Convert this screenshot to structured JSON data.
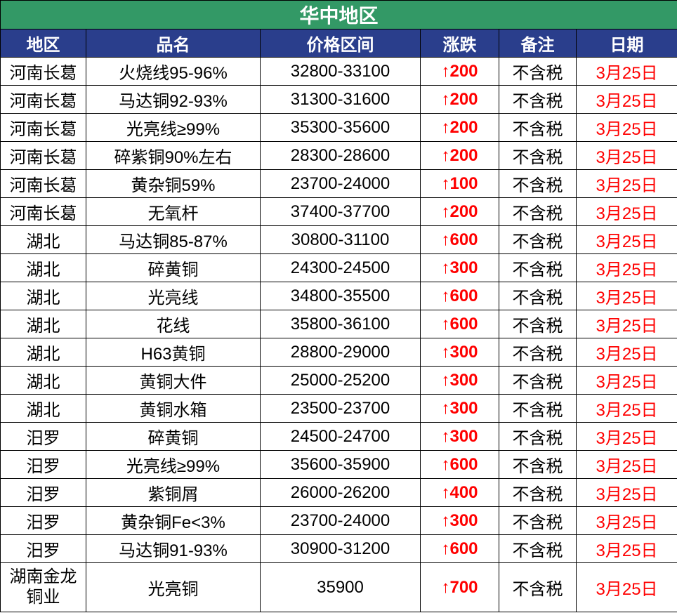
{
  "title": "华中地区",
  "headers": {
    "region": "地区",
    "product": "品名",
    "price": "价格区间",
    "change": "涨跌",
    "note": "备注",
    "date": "日期"
  },
  "colors": {
    "title_bg": "#339966",
    "header_bg": "#2a3e8c",
    "header_text": "#ffffff",
    "change_text": "#ff0000",
    "date_text": "#ff0000",
    "border": "#000000",
    "cell_bg": "#ffffff"
  },
  "arrow_up": "↑",
  "rows": [
    {
      "region": "河南长葛",
      "product": "火烧线95-96%",
      "price": "32800-33100",
      "change": "200",
      "note": "不含税",
      "date": "3月25日"
    },
    {
      "region": "河南长葛",
      "product": "马达铜92-93%",
      "price": "31300-31600",
      "change": "200",
      "note": "不含税",
      "date": "3月25日"
    },
    {
      "region": "河南长葛",
      "product": "光亮线≥99%",
      "price": "35300-35600",
      "change": "200",
      "note": "不含税",
      "date": "3月25日"
    },
    {
      "region": "河南长葛",
      "product": "碎紫铜90%左右",
      "price": "28300-28600",
      "change": "200",
      "note": "不含税",
      "date": "3月25日"
    },
    {
      "region": "河南长葛",
      "product": "黄杂铜59%",
      "price": "23700-24000",
      "change": "100",
      "note": "不含税",
      "date": "3月25日"
    },
    {
      "region": "河南长葛",
      "product": "无氧杆",
      "price": "37400-37700",
      "change": "200",
      "note": "不含税",
      "date": "3月25日"
    },
    {
      "region": "湖北",
      "product": "马达铜85-87%",
      "price": "30800-31100",
      "change": "600",
      "note": "不含税",
      "date": "3月25日"
    },
    {
      "region": "湖北",
      "product": "碎黄铜",
      "price": "24300-24500",
      "change": "300",
      "note": "不含税",
      "date": "3月25日"
    },
    {
      "region": "湖北",
      "product": "光亮线",
      "price": "34800-35500",
      "change": "600",
      "note": "不含税",
      "date": "3月25日"
    },
    {
      "region": "湖北",
      "product": "花线",
      "price": "35800-36100",
      "change": "600",
      "note": "不含税",
      "date": "3月25日"
    },
    {
      "region": "湖北",
      "product": "H63黄铜",
      "price": "28800-29000",
      "change": "300",
      "note": "不含税",
      "date": "3月25日"
    },
    {
      "region": "湖北",
      "product": "黄铜大件",
      "price": "25000-25200",
      "change": "300",
      "note": "不含税",
      "date": "3月25日"
    },
    {
      "region": "湖北",
      "product": "黄铜水箱",
      "price": "23500-23700",
      "change": "300",
      "note": "不含税",
      "date": "3月25日"
    },
    {
      "region": "汨罗",
      "product": "碎黄铜",
      "price": "24500-24700",
      "change": "300",
      "note": "不含税",
      "date": "3月25日"
    },
    {
      "region": "汨罗",
      "product": "光亮线≥99%",
      "price": "35600-35900",
      "change": "600",
      "note": "不含税",
      "date": "3月25日"
    },
    {
      "region": "汨罗",
      "product": "紫铜屑",
      "price": "26000-26200",
      "change": "400",
      "note": "不含税",
      "date": "3月25日"
    },
    {
      "region": "汨罗",
      "product": "黄杂铜Fe<3%",
      "price": "23700-24000",
      "change": "300",
      "note": "不含税",
      "date": "3月25日"
    },
    {
      "region": "汨罗",
      "product": "马达铜91-93%",
      "price": "30900-31200",
      "change": "600",
      "note": "不含税",
      "date": "3月25日"
    },
    {
      "region": "湖南金龙铜业",
      "product": "光亮铜",
      "price": "35900",
      "change": "700",
      "note": "不含税",
      "date": "3月25日",
      "multiline": true
    }
  ]
}
